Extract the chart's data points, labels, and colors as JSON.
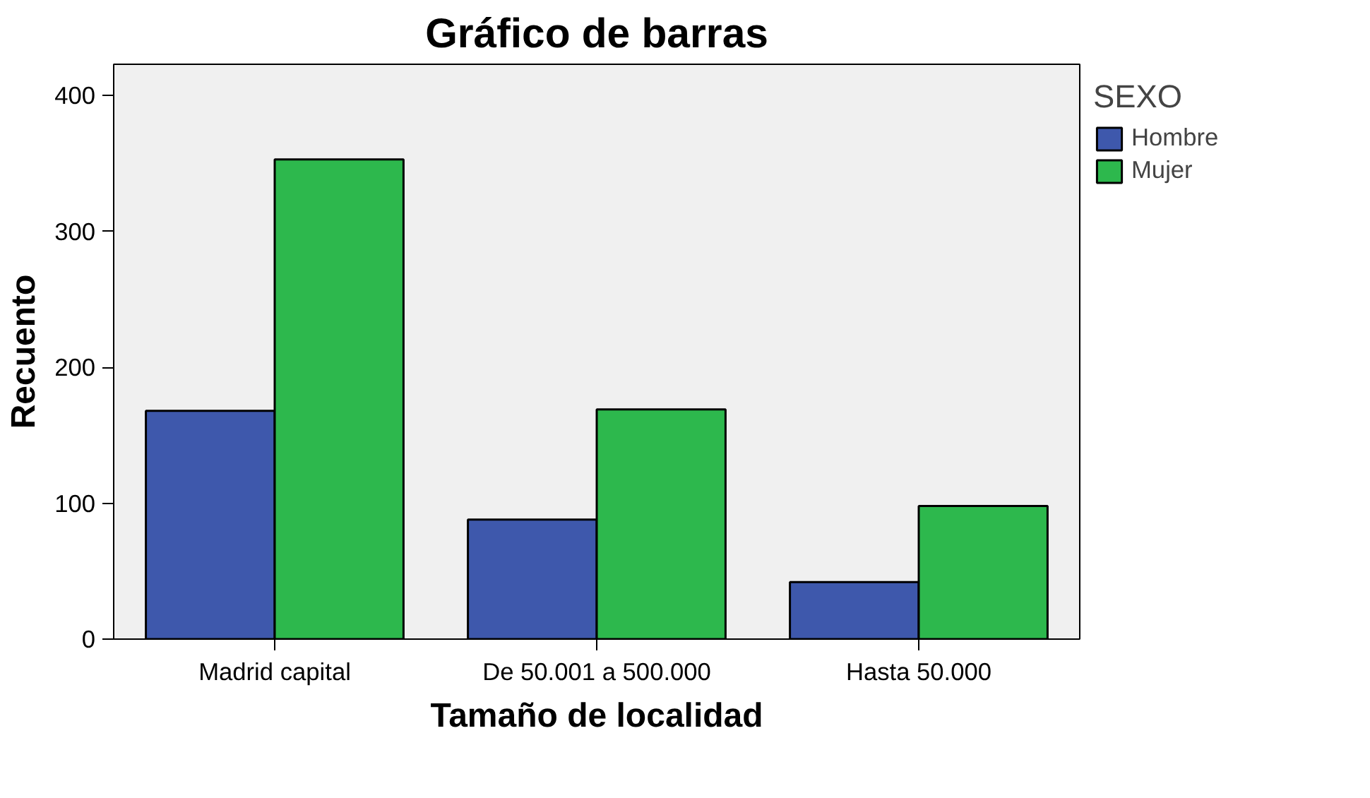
{
  "chart_data": {
    "type": "bar",
    "title": "Gráfico de barras",
    "xlabel": "Tamaño de localidad",
    "ylabel": "Recuento",
    "legend_title": "SEXO",
    "categories": [
      "Madrid capital",
      "De 50.001 a 500.000",
      "Hasta 50.000"
    ],
    "series": [
      {
        "name": "Hombre",
        "color": "#3e58ac",
        "values": [
          168,
          88,
          42
        ]
      },
      {
        "name": "Mujer",
        "color": "#2db84d",
        "values": [
          353,
          169,
          98
        ]
      }
    ],
    "ylim": [
      0,
      423
    ],
    "yticks": [
      0,
      100,
      200,
      300,
      400
    ],
    "grid": false,
    "legend": "top right"
  }
}
